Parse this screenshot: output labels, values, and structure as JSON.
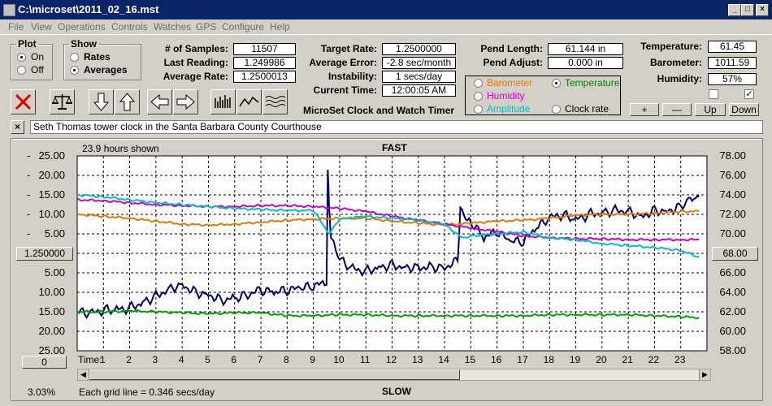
{
  "window": {
    "title": "C:\\microset\\2011_02_16.mst",
    "min": "_",
    "max": "□",
    "close": "×"
  },
  "menu": [
    "File",
    "View",
    "Operations",
    "Controls",
    "Watches",
    "GPS",
    "Configure",
    "Help"
  ],
  "plot": {
    "legend": "Plot",
    "on": "On",
    "off": "Off",
    "selected": "On"
  },
  "show": {
    "legend": "Show",
    "rates": "Rates",
    "averages": "Averages",
    "selected": "Averages"
  },
  "stats": {
    "samples_label": "# of Samples:",
    "samples": "11507",
    "last_label": "Last Reading:",
    "last": "1.249986",
    "avg_label": "Average Rate:",
    "avg": "1.2500013",
    "target_label": "Target Rate:",
    "target": "1.2500000",
    "err_label": "Average Error:",
    "err": "-2.8 sec/month",
    "inst_label": "Instability:",
    "inst": "1 secs/day",
    "time_label": "Current Time:",
    "time": "12:00:05 AM",
    "pend_len_label": "Pend Length:",
    "pend_len": "61.144 in",
    "pend_adj_label": "Pend Adjust:",
    "pend_adj": "0.000 in",
    "temp_label": "Temperature:",
    "temp": "61.45",
    "baro_label": "Barometer:",
    "baro": "1011.59",
    "hum_label": "Humidity:",
    "hum": "57%"
  },
  "app_name": "MicroSet Clock and Watch Timer",
  "aux": {
    "barometer": "Barometer",
    "temperature": "Temperature",
    "humidity": "Humidity",
    "amplitude": "Amplitude",
    "clock_rate": "Clock rate",
    "selected": "Temperature",
    "colors": {
      "barometer": "#e07a00",
      "temperature": "#008000",
      "humidity": "#cc00cc",
      "amplitude": "#00c0c0",
      "clock_rate": "#000000"
    }
  },
  "scale_buttons": {
    "plus": "+",
    "minus": "—",
    "up": "Up",
    "down": "Down"
  },
  "checkboxes": [
    {
      "checked": false
    },
    {
      "checked": true
    }
  ],
  "description": "Seth Thomas tower clock in the Santa Barbara County Courthouse",
  "close_desc": "×",
  "chart": {
    "hours_shown": "23.9 hours shown",
    "fast": "FAST",
    "slow": "SLOW",
    "center_rate": "1.250000",
    "center_temp": "68.00",
    "zero_btn": "0",
    "time_label": "Time:",
    "percent": "3.03%",
    "grid_note": "Each grid line = 0.346 secs/day"
  },
  "chart_data": {
    "type": "line",
    "left_axis_ticks": [
      "25.00",
      "20.00",
      "15.00",
      "10.00",
      "5.00",
      "",
      "5.00",
      "10.00",
      "15.00",
      "20.00",
      "25.00"
    ],
    "right_axis_ticks": [
      "78.00",
      "76.00",
      "74.00",
      "72.00",
      "70.00",
      "",
      "66.00",
      "64.00",
      "62.00",
      "60.00",
      "58.00"
    ],
    "x_ticks": [
      "1",
      "2",
      "3",
      "4",
      "5",
      "6",
      "7",
      "8",
      "9",
      "10",
      "11",
      "12",
      "13",
      "14",
      "15",
      "16",
      "17",
      "18",
      "19",
      "20",
      "21",
      "22",
      "23"
    ],
    "xlim": [
      0,
      24
    ],
    "ylim_left": [
      -25,
      25
    ],
    "ylim_right": [
      58,
      78
    ],
    "series": [
      {
        "color": "#000070",
        "axis": "left",
        "x": [
          0,
          0.5,
          1,
          1.5,
          2,
          2.5,
          3,
          3.5,
          4,
          4.5,
          5,
          5.5,
          6,
          6.5,
          7,
          7.5,
          8,
          8.5,
          9,
          9.5,
          9.55,
          9.6,
          9.65,
          9.7,
          10,
          10.5,
          11,
          11.5,
          12,
          12.5,
          13,
          13.5,
          14,
          14.5,
          14.6,
          14.8,
          15,
          15.5,
          16,
          16.5,
          17,
          17.5,
          18,
          18.5,
          19,
          19.5,
          20,
          20.5,
          21,
          21.5,
          22,
          22.5,
          23,
          23.3,
          23.5,
          23.7
        ],
        "y": [
          -15,
          -15.5,
          -14.5,
          -14.5,
          -14,
          -12.5,
          -11,
          -9,
          -8,
          -10,
          -10.5,
          -12,
          -11.5,
          -10.5,
          -9.5,
          -10,
          -9.5,
          -9,
          -8.5,
          -7.5,
          21,
          12,
          5,
          3,
          -1.5,
          -4,
          -4.5,
          -3.5,
          -3,
          -3.5,
          -3.5,
          -3.5,
          -3.5,
          -2,
          12,
          10,
          8,
          4,
          5.5,
          3,
          3,
          6.5,
          9,
          10,
          8.5,
          10,
          10.5,
          11,
          11,
          9.5,
          11,
          11,
          12,
          14,
          15,
          14.5
        ]
      },
      {
        "color": "#e07a00",
        "axis": "right",
        "x": [
          0,
          1,
          2,
          3,
          4,
          5,
          6,
          7,
          8,
          9,
          10,
          11,
          12,
          13,
          14,
          15,
          16,
          17,
          18,
          19,
          20,
          21,
          22,
          23,
          23.7
        ],
        "y": [
          72.0,
          71.8,
          71.6,
          71.3,
          71.0,
          70.9,
          71.0,
          71.2,
          71.4,
          71.5,
          71.6,
          71.6,
          71.3,
          71.1,
          70.9,
          71.1,
          71.3,
          71.4,
          71.6,
          71.9,
          72.0,
          72.0,
          72.1,
          72.3,
          72.3
        ]
      },
      {
        "color": "#cc00cc",
        "axis": "right",
        "x": [
          0,
          1,
          2,
          3,
          4,
          5,
          6,
          7,
          8,
          9,
          10,
          11,
          12,
          13,
          14,
          15,
          16,
          17,
          18,
          19,
          20,
          21,
          22,
          23,
          23.7
        ],
        "y": [
          73.5,
          73.4,
          73.2,
          73.0,
          72.9,
          72.8,
          72.8,
          72.9,
          72.9,
          72.8,
          72.6,
          72.3,
          71.8,
          71.4,
          71.0,
          70.6,
          70.2,
          69.8,
          69.6,
          69.5,
          69.5,
          69.4,
          69.4,
          69.4,
          69.4
        ]
      },
      {
        "color": "#00c0c0",
        "axis": "right",
        "x": [
          0,
          1,
          2,
          3,
          4,
          5,
          6,
          7,
          8,
          9,
          9.6,
          10,
          11,
          12,
          13,
          14,
          14.7,
          15,
          16,
          17,
          18,
          19,
          20,
          21,
          22,
          23,
          23.7
        ],
        "y": [
          74.0,
          73.8,
          73.5,
          73.2,
          73.0,
          72.8,
          72.6,
          72.5,
          72.4,
          72.4,
          70.0,
          71.5,
          71.8,
          71.6,
          71.4,
          71.0,
          69.5,
          69.8,
          70.0,
          70.2,
          69.6,
          69.4,
          69.0,
          68.8,
          68.6,
          68.3,
          67.6
        ]
      },
      {
        "color": "#00a000",
        "axis": "right",
        "x": [
          0,
          1,
          2,
          3,
          4,
          5,
          6,
          7,
          8,
          9,
          10,
          11,
          12,
          13,
          14,
          15,
          16,
          17,
          18,
          19,
          20,
          21,
          22,
          23,
          23.7
        ],
        "y": [
          62.0,
          62.0,
          62.1,
          62.0,
          61.9,
          61.8,
          61.9,
          61.9,
          61.6,
          61.6,
          61.7,
          61.7,
          61.6,
          61.6,
          61.6,
          61.6,
          61.6,
          61.6,
          61.7,
          61.7,
          61.7,
          61.7,
          61.6,
          61.5,
          61.4
        ]
      }
    ]
  }
}
